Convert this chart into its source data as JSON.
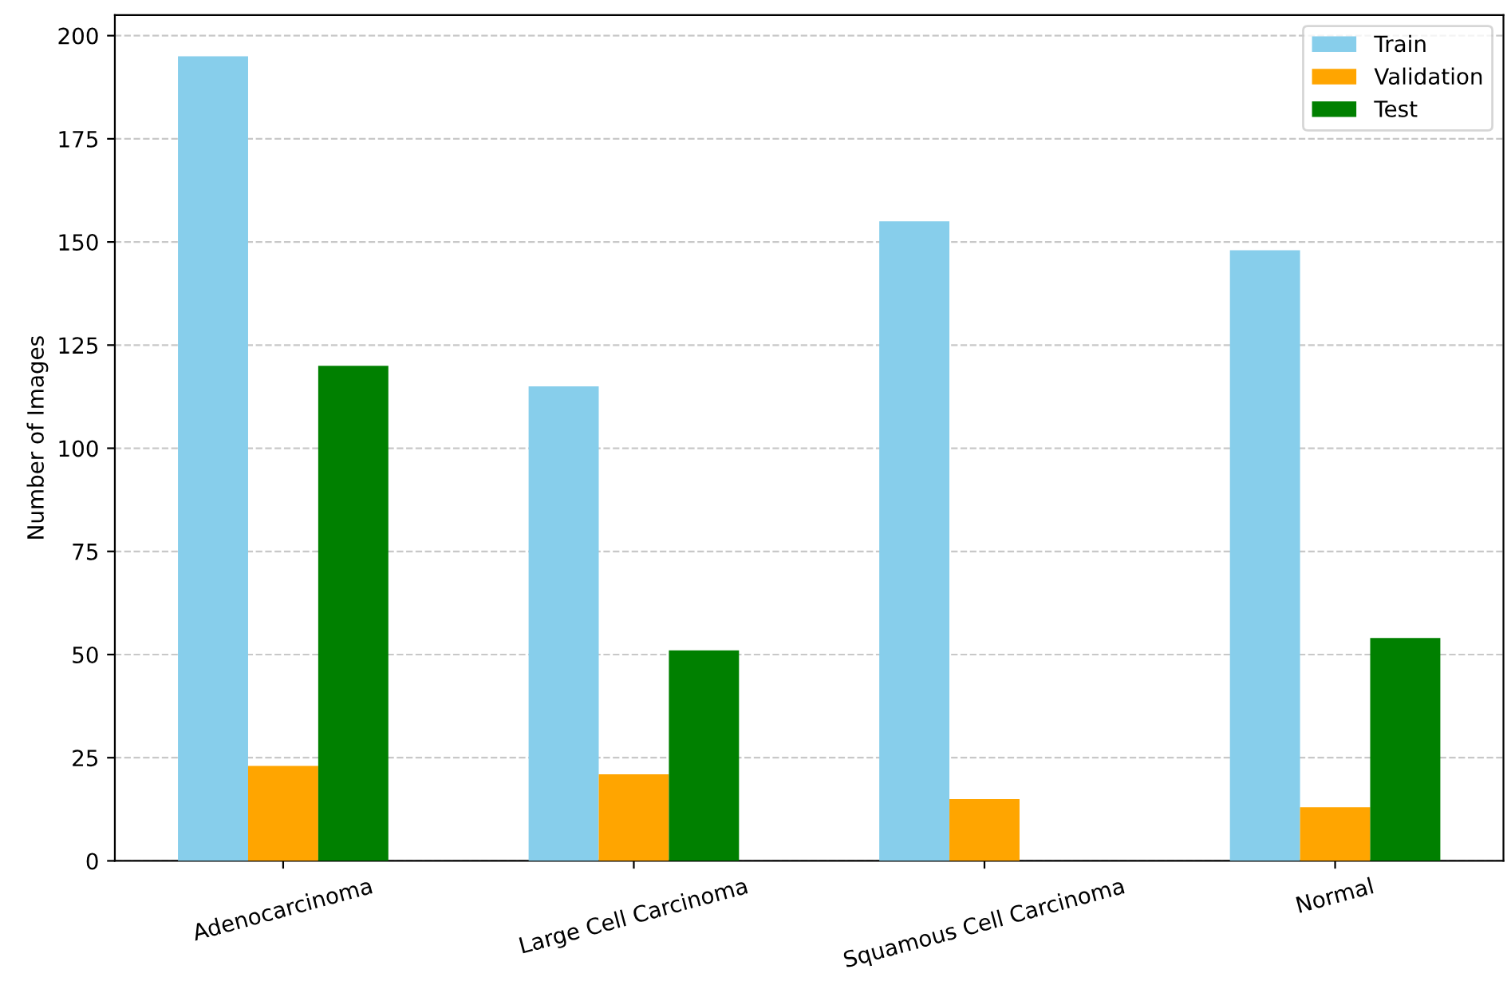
{
  "chart_data": {
    "type": "bar",
    "ylabel": "Number of Images",
    "categories": [
      "Adenocarcinoma",
      "Large Cell Carcinoma",
      "Squamous Cell Carcinoma",
      "Normal"
    ],
    "series": [
      {
        "name": "Train",
        "color": "#87ceeb",
        "values": [
          195,
          115,
          155,
          148
        ]
      },
      {
        "name": "Validation",
        "color": "#ffa500",
        "values": [
          23,
          21,
          15,
          13
        ]
      },
      {
        "name": "Test",
        "color": "#008000",
        "values": [
          120,
          51,
          0,
          54
        ]
      }
    ],
    "ylim": [
      0,
      205
    ],
    "yticks": [
      0,
      25,
      50,
      75,
      100,
      125,
      150,
      175,
      200
    ],
    "grid": "y",
    "legend": "top right"
  }
}
